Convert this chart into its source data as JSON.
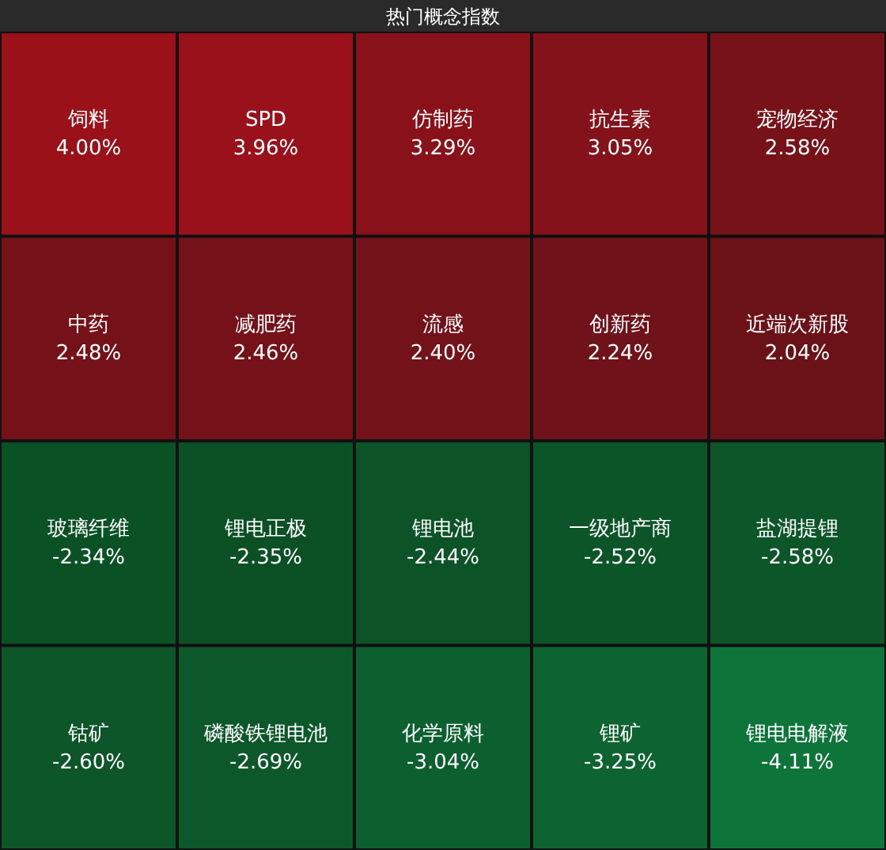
{
  "chart_data": {
    "type": "other",
    "title": "热门概念指数",
    "categories": [
      "饲料",
      "SPD",
      "仿制药",
      "抗生素",
      "宠物经济",
      "中药",
      "减肥药",
      "流感",
      "创新药",
      "近端次新股",
      "玻璃纤维",
      "锂电正极",
      "锂电池",
      "一级地产商",
      "盐湖提锂",
      "钴矿",
      "磷酸铁锂电池",
      "化学原料",
      "锂矿",
      "锂电电解液"
    ],
    "values": [
      4.0,
      3.96,
      3.29,
      3.05,
      2.58,
      2.48,
      2.46,
      2.4,
      2.24,
      2.04,
      -2.34,
      -2.35,
      -2.44,
      -2.52,
      -2.58,
      -2.6,
      -2.69,
      -3.04,
      -3.25,
      -4.11
    ],
    "value_labels": [
      "4.00%",
      "3.96%",
      "3.29%",
      "3.05%",
      "2.58%",
      "2.48%",
      "2.46%",
      "2.40%",
      "2.24%",
      "2.04%",
      "-2.34%",
      "-2.35%",
      "-2.44%",
      "-2.52%",
      "-2.58%",
      "-2.60%",
      "-2.69%",
      "-3.04%",
      "-3.25%",
      "-4.11%"
    ]
  }
}
